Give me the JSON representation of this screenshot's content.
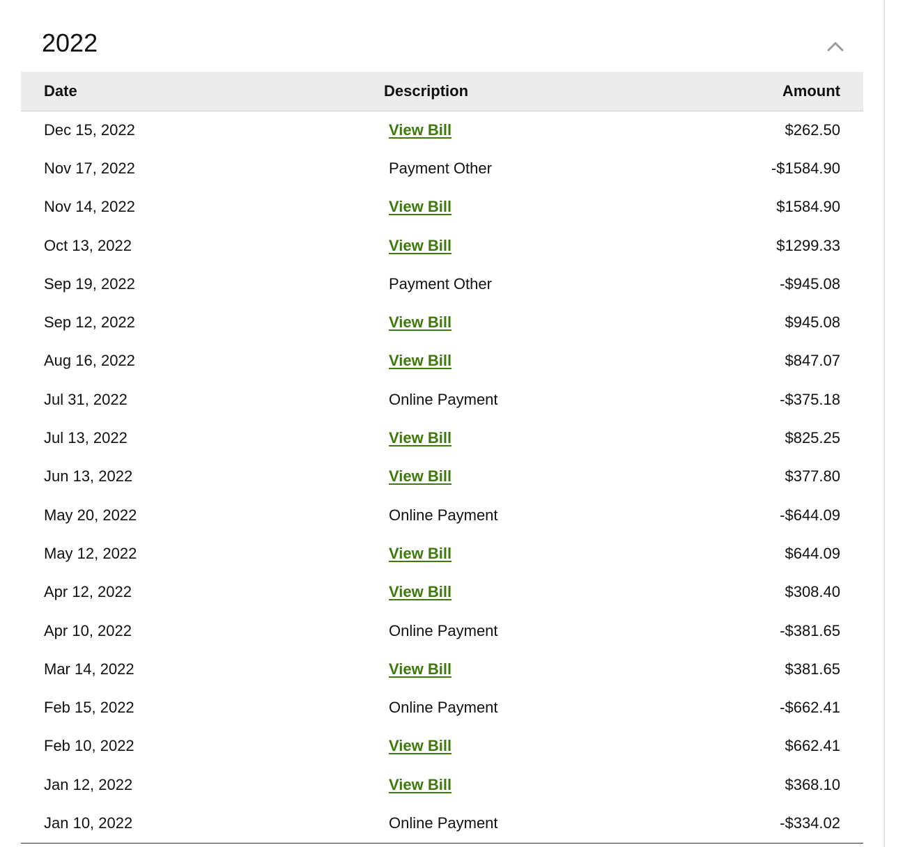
{
  "section": {
    "year": "2022"
  },
  "table": {
    "headers": {
      "date": "Date",
      "description": "Description",
      "amount": "Amount"
    },
    "rows": [
      {
        "date": "Dec 15, 2022",
        "description": "View Bill",
        "link": true,
        "amount": "$262.50"
      },
      {
        "date": "Nov 17, 2022",
        "description": "Payment Other",
        "link": false,
        "amount": "-$1584.90"
      },
      {
        "date": "Nov 14, 2022",
        "description": "View Bill",
        "link": true,
        "amount": "$1584.90"
      },
      {
        "date": "Oct 13, 2022",
        "description": "View Bill",
        "link": true,
        "amount": "$1299.33"
      },
      {
        "date": "Sep 19, 2022",
        "description": "Payment Other",
        "link": false,
        "amount": "-$945.08"
      },
      {
        "date": "Sep 12, 2022",
        "description": "View Bill",
        "link": true,
        "amount": "$945.08"
      },
      {
        "date": "Aug 16, 2022",
        "description": "View Bill",
        "link": true,
        "amount": "$847.07"
      },
      {
        "date": "Jul 31, 2022",
        "description": "Online Payment",
        "link": false,
        "amount": "-$375.18"
      },
      {
        "date": "Jul 13, 2022",
        "description": "View Bill",
        "link": true,
        "amount": "$825.25"
      },
      {
        "date": "Jun 13, 2022",
        "description": "View Bill",
        "link": true,
        "amount": "$377.80"
      },
      {
        "date": "May 20, 2022",
        "description": "Online Payment",
        "link": false,
        "amount": "-$644.09"
      },
      {
        "date": "May 12, 2022",
        "description": "View Bill",
        "link": true,
        "amount": "$644.09"
      },
      {
        "date": "Apr 12, 2022",
        "description": "View Bill",
        "link": true,
        "amount": "$308.40"
      },
      {
        "date": "Apr 10, 2022",
        "description": "Online Payment",
        "link": false,
        "amount": "-$381.65"
      },
      {
        "date": "Mar 14, 2022",
        "description": "View Bill",
        "link": true,
        "amount": "$381.65"
      },
      {
        "date": "Feb 15, 2022",
        "description": "Online Payment",
        "link": false,
        "amount": "-$662.41"
      },
      {
        "date": "Feb 10, 2022",
        "description": "View Bill",
        "link": true,
        "amount": "$662.41"
      },
      {
        "date": "Jan 12, 2022",
        "description": "View Bill",
        "link": true,
        "amount": "$368.10"
      },
      {
        "date": "Jan 10, 2022",
        "description": "Online Payment",
        "link": false,
        "amount": "-$334.02"
      }
    ]
  },
  "icons": {
    "collapse": "chevron-up-icon"
  },
  "colors": {
    "link": "#3d7a0b",
    "header_bg": "#ececec",
    "icon": "#9a9a9a"
  }
}
